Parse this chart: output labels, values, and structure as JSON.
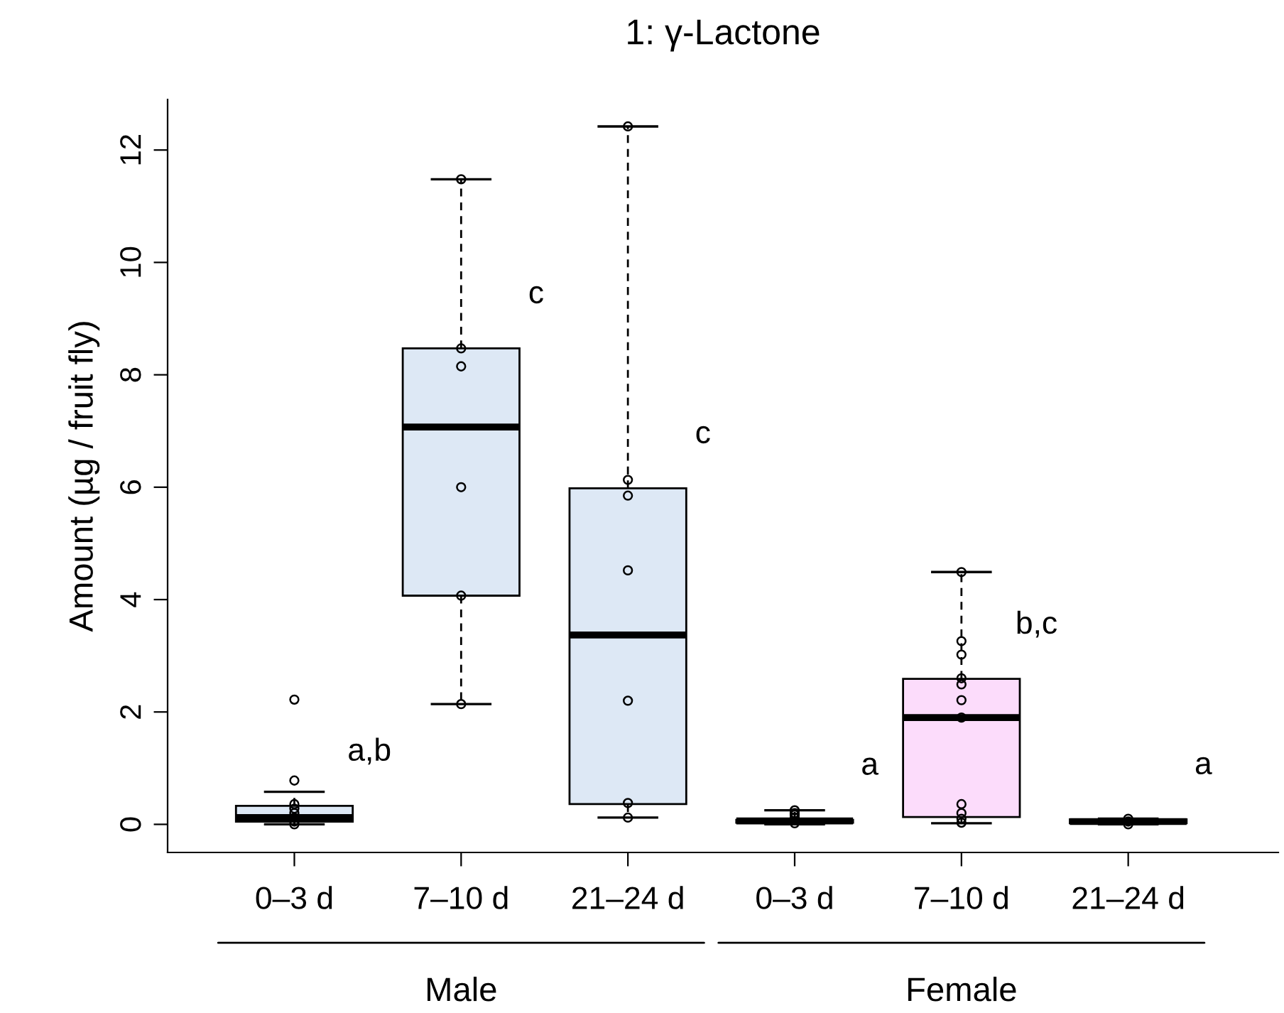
{
  "chart_data": {
    "type": "box",
    "title": "1: γ-Lactone",
    "ylabel": "Amount (µg / fruit fly)",
    "categories": [
      "0–3 d",
      "7–10 d",
      "21–24 d",
      "0–3 d",
      "7–10 d",
      "21–24 d"
    ],
    "colors": [
      "#dde8f5",
      "#dde8f5",
      "#dde8f5",
      "#fcdcfb",
      "#fcdcfb",
      "#fcdcfb"
    ],
    "boxes": [
      {
        "low": 0.0,
        "q1": 0.05,
        "median": 0.12,
        "q3": 0.33,
        "high": 0.58,
        "outliers": [
          2.22,
          0.78,
          0.36,
          0.28,
          0.2,
          0.12,
          0.05,
          0.0
        ]
      },
      {
        "low": 2.14,
        "q1": 4.07,
        "median": 7.07,
        "q3": 8.47,
        "high": 11.48,
        "outliers": [
          11.48,
          8.47,
          8.15,
          6.0,
          4.07,
          2.14
        ]
      },
      {
        "low": 0.12,
        "q1": 0.36,
        "median": 3.37,
        "q3": 5.98,
        "high": 12.42,
        "outliers": [
          12.42,
          6.13,
          5.85,
          4.52,
          2.2,
          0.38,
          0.12
        ]
      },
      {
        "low": 0.0,
        "q1": 0.03,
        "median": 0.06,
        "q3": 0.08,
        "high": 0.25,
        "outliers": [
          0.25,
          0.2,
          0.17,
          0.12,
          0.02
        ]
      },
      {
        "low": 0.02,
        "q1": 0.13,
        "median": 1.9,
        "q3": 2.59,
        "high": 4.49,
        "outliers": [
          4.49,
          3.26,
          3.02,
          2.6,
          2.49,
          2.21,
          1.9,
          0.36,
          0.2,
          0.1,
          0.03
        ]
      },
      {
        "low": 0.0,
        "q1": 0.02,
        "median": 0.05,
        "q3": 0.09,
        "high": 0.1,
        "outliers": [
          0.1,
          0.05,
          0.0
        ]
      }
    ],
    "ylim": [
      -0.5,
      12.9
    ],
    "yticks": [
      0,
      2,
      4,
      6,
      8,
      10,
      12
    ],
    "grid": false,
    "annotations": [
      "a,b",
      "c",
      "c",
      "a",
      "b,c",
      "a",
      "Male",
      "Female"
    ]
  }
}
